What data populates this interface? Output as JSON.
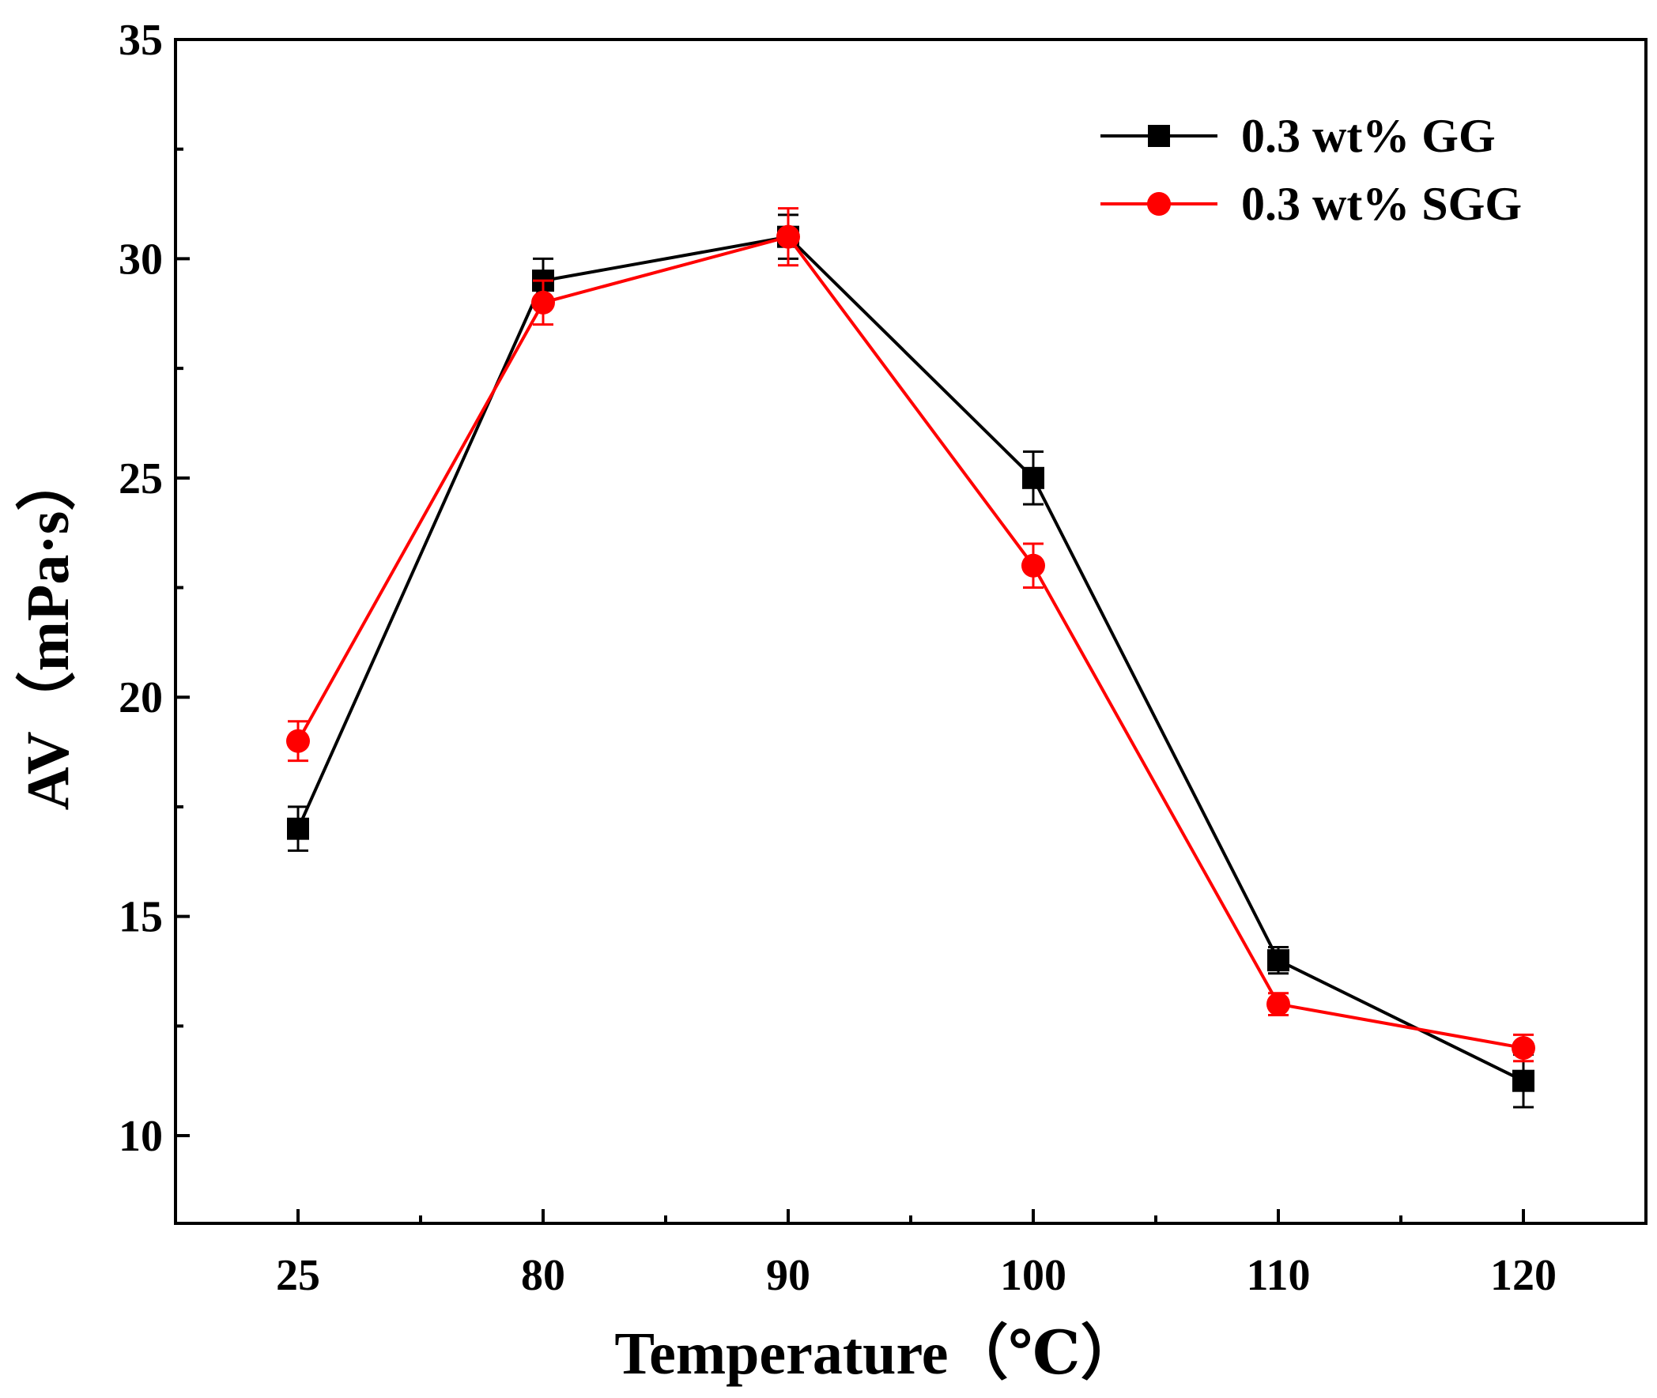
{
  "chart_data": {
    "type": "line",
    "title": "",
    "xlabel": "Temperature（℃）",
    "ylabel": "AV（mPa·s）",
    "categories": [
      "25",
      "80",
      "90",
      "100",
      "110",
      "120"
    ],
    "ylim": [
      8,
      35
    ],
    "yticks": [
      10,
      15,
      20,
      25,
      30,
      35
    ],
    "legend_position": "top-right",
    "series": [
      {
        "name": "0.3 wt% GG",
        "color": "#000000",
        "marker": "square",
        "values": [
          17.0,
          29.5,
          30.5,
          25.0,
          14.0,
          11.25
        ],
        "errors": [
          0.5,
          0.5,
          0.5,
          0.6,
          0.3,
          0.6
        ]
      },
      {
        "name": "0.3 wt% SGG",
        "color": "#ff0000",
        "marker": "circle",
        "values": [
          19.0,
          29.0,
          30.5,
          23.0,
          13.0,
          12.0
        ],
        "errors": [
          0.45,
          0.5,
          0.65,
          0.5,
          0.25,
          0.3
        ]
      }
    ]
  }
}
